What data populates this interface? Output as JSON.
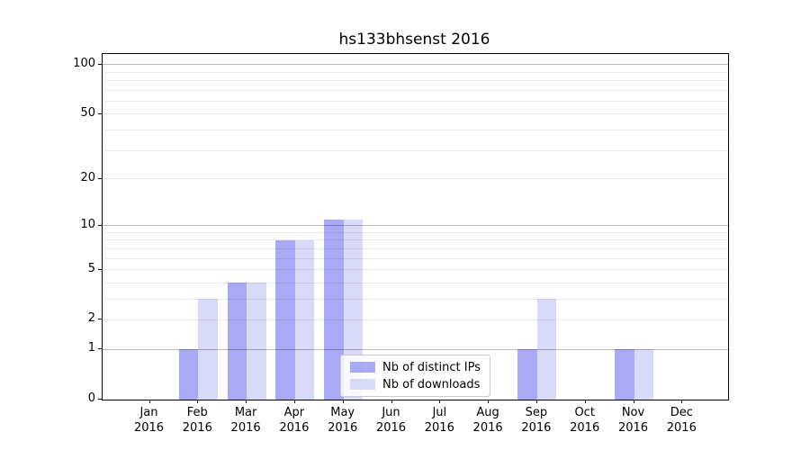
{
  "title": "hs133bhsenst 2016",
  "chart_data": {
    "type": "bar",
    "title": "hs133bhsenst 2016",
    "y_scale": "log(1+y)",
    "grid": true,
    "categories": [
      "Jan",
      "Feb",
      "Mar",
      "Apr",
      "May",
      "Jun",
      "Jul",
      "Aug",
      "Sep",
      "Oct",
      "Nov",
      "Dec"
    ],
    "x_year_label": "2016",
    "series": [
      {
        "name": "Nb of distinct IPs",
        "color": "#a9a9f5",
        "values": [
          0,
          1,
          4,
          8,
          11,
          0,
          0,
          0,
          1,
          0,
          1,
          0
        ]
      },
      {
        "name": "Nb of downloads",
        "color": "#d9d9f8",
        "values": [
          0,
          3,
          4,
          8,
          11,
          0,
          0,
          0,
          3,
          0,
          1,
          0
        ]
      }
    ],
    "y_ticks": [
      0,
      1,
      2,
      5,
      10,
      20,
      50,
      100
    ],
    "y_major_gridlines": [
      1,
      10,
      100
    ],
    "y_minor_gridlines": [
      3,
      4,
      6,
      7,
      8,
      9,
      30,
      40,
      60,
      70,
      80,
      90
    ],
    "ylim": [
      0,
      116
    ],
    "xlabel": "",
    "ylabel": "",
    "legend_position": "lower center-right"
  },
  "colors": {
    "bar_distinct_ips": "#a9a9f5",
    "bar_downloads": "#d9d9f8",
    "grid_major": "rgba(0,0,0,0.27)",
    "grid_minor": "rgba(0,0,0,0.075)",
    "legend_border": "#cccccc",
    "axis": "#000000"
  }
}
